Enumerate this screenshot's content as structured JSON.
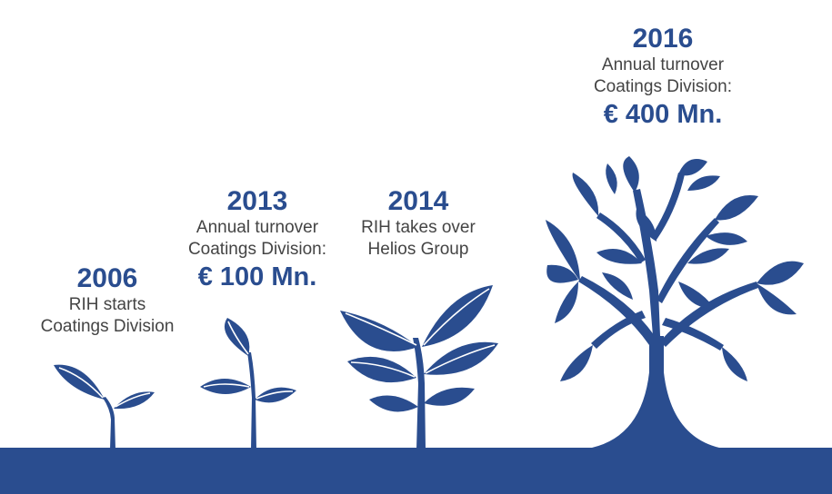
{
  "accent_color": "#2a4d8f",
  "text_color": "#444444",
  "milestones": [
    {
      "year": "2006",
      "lines": [
        "RIH starts",
        "Coatings Division"
      ],
      "amount": ""
    },
    {
      "year": "2013",
      "lines": [
        "Annual turnover",
        "Coatings Division:"
      ],
      "amount": "€ 100 Mn."
    },
    {
      "year": "2014",
      "lines": [
        "RIH takes over",
        "Helios Group"
      ],
      "amount": ""
    },
    {
      "year": "2016",
      "lines": [
        "Annual turnover",
        "Coatings Division:"
      ],
      "amount": "€ 400 Mn."
    }
  ]
}
